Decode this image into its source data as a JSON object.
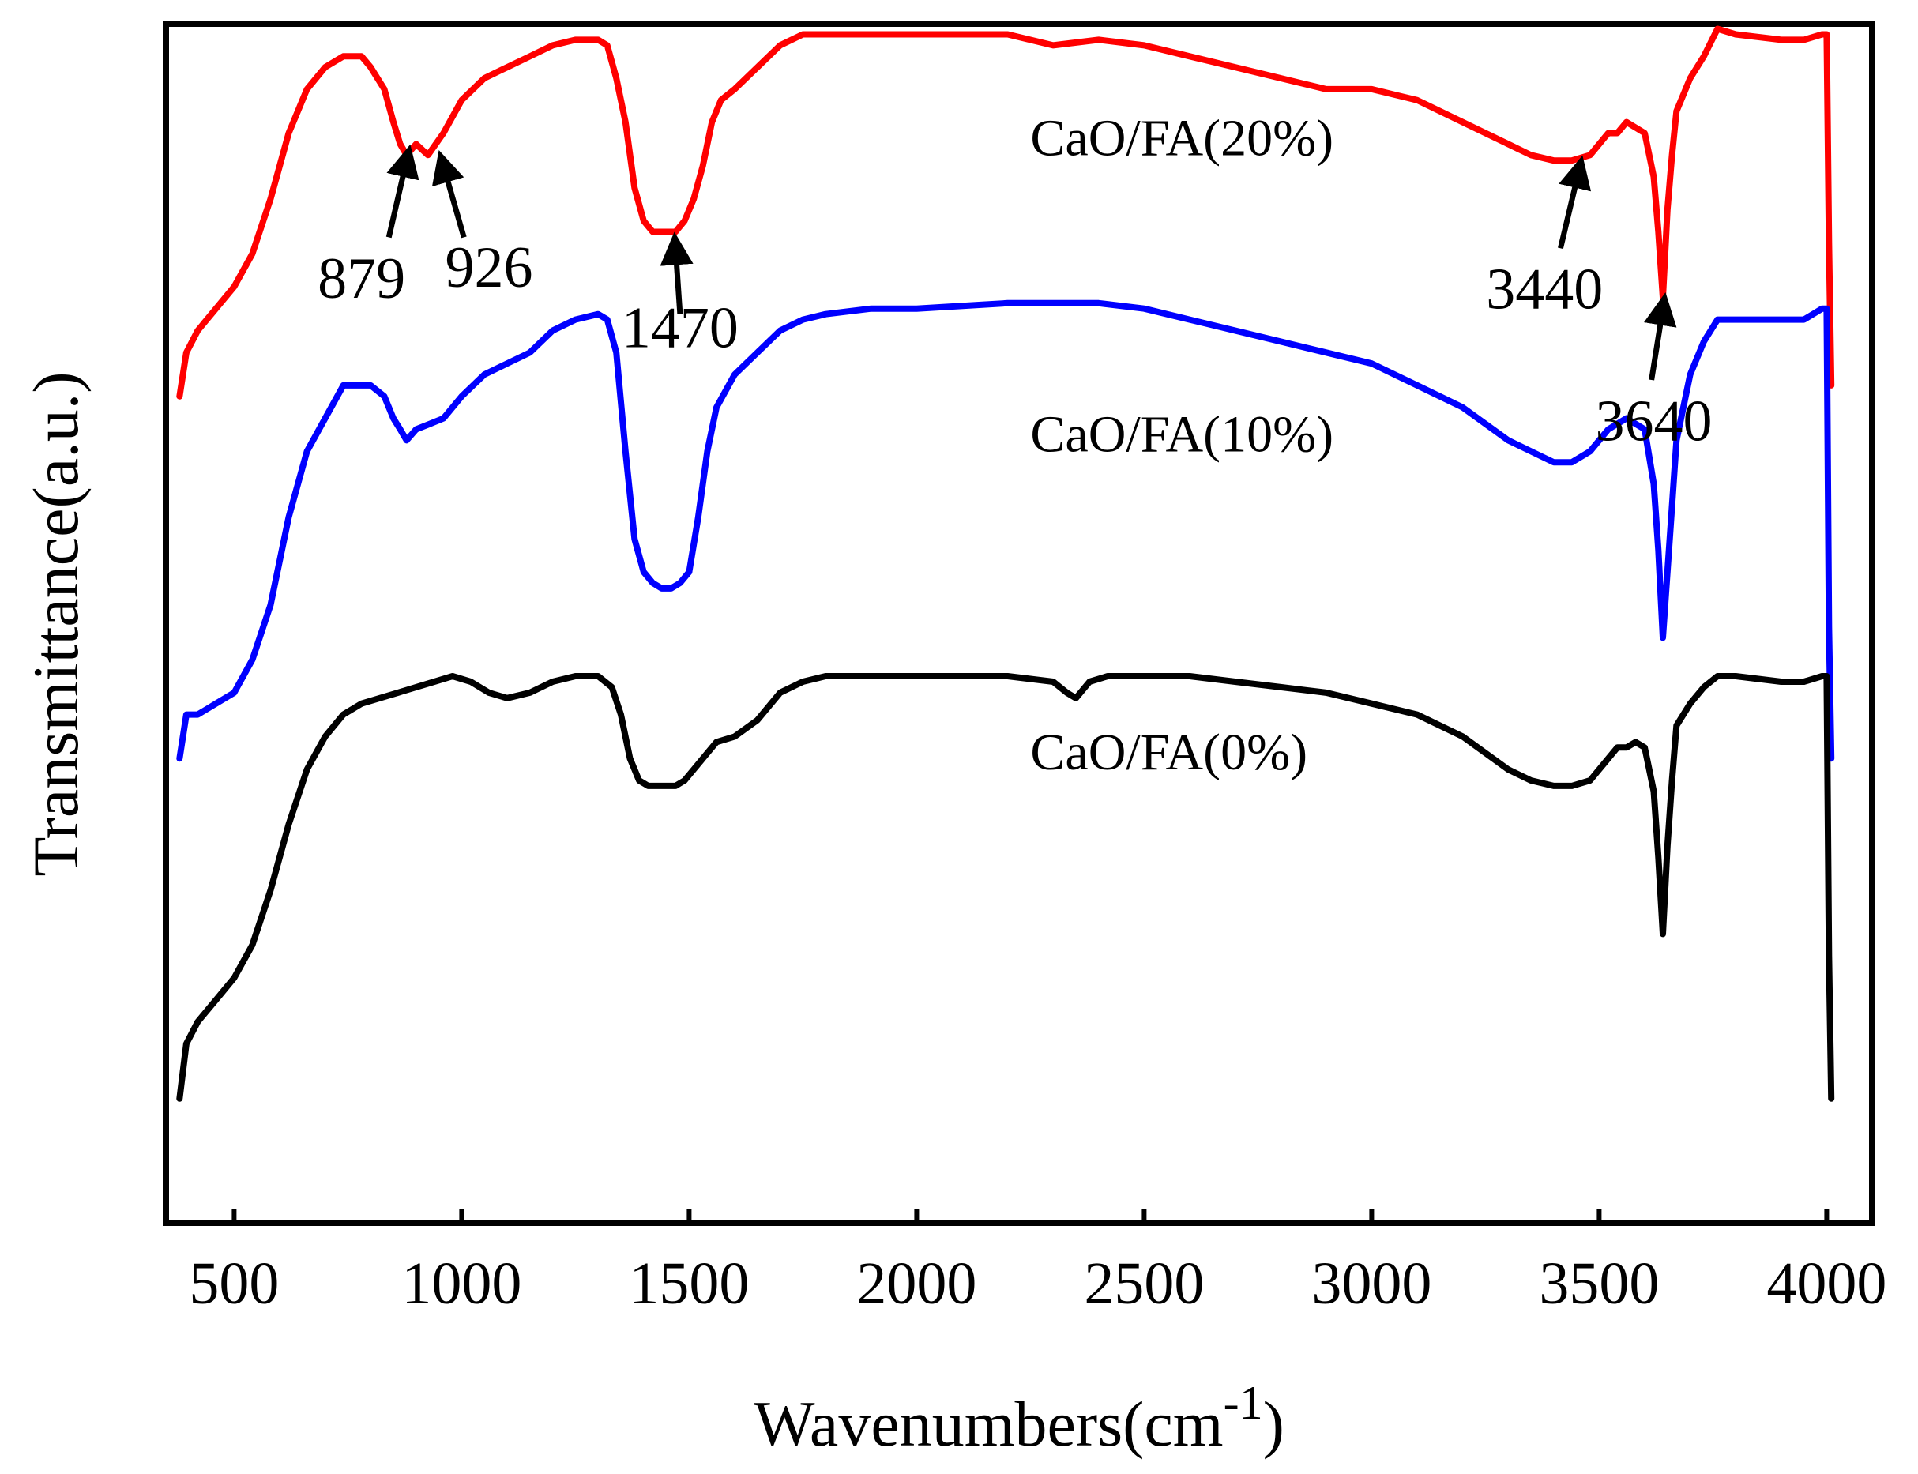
{
  "chart_data": {
    "type": "line",
    "title": "",
    "xlabel": "Wavenumbers(cm",
    "xlabel_superscript": "-1",
    "xlabel_suffix": ")",
    "ylabel": "Transmittance(a.u.)",
    "xlim": [
      350,
      4100
    ],
    "ylim": [
      0,
      1
    ],
    "x_ticks": [
      500,
      1000,
      1500,
      2000,
      2500,
      3000,
      3500,
      4000
    ],
    "x_tick_labels": [
      "500",
      "1000",
      "1500",
      "2000",
      "2500",
      "3000",
      "3500",
      "4000"
    ],
    "y_ticks_visible": false,
    "grid": false,
    "series": [
      {
        "name": "CaO/FA(20%)",
        "color": "#ff0000",
        "x": [
          380,
          395,
          420,
          460,
          500,
          540,
          580,
          620,
          660,
          700,
          740,
          780,
          800,
          830,
          850,
          865,
          879,
          900,
          926,
          960,
          1000,
          1050,
          1100,
          1150,
          1200,
          1250,
          1300,
          1320,
          1340,
          1360,
          1380,
          1400,
          1420,
          1440,
          1460,
          1470,
          1490,
          1510,
          1530,
          1550,
          1570,
          1600,
          1650,
          1700,
          1750,
          1800,
          1900,
          2000,
          2200,
          2300,
          2400,
          2500,
          2600,
          2700,
          2800,
          2900,
          3000,
          3100,
          3200,
          3300,
          3350,
          3400,
          3440,
          3480,
          3500,
          3520,
          3540,
          3560,
          3580,
          3600,
          3620,
          3630,
          3640,
          3650,
          3660,
          3670,
          3700,
          3730,
          3760,
          3800,
          3900,
          3950,
          3990,
          4000,
          4005,
          4010
        ],
        "y": [
          0.71,
          0.75,
          0.77,
          0.79,
          0.81,
          0.84,
          0.89,
          0.95,
          0.99,
          1.01,
          1.02,
          1.02,
          1.01,
          0.99,
          0.96,
          0.94,
          0.93,
          0.94,
          0.93,
          0.95,
          0.98,
          1.0,
          1.01,
          1.02,
          1.03,
          1.035,
          1.035,
          1.03,
          1.0,
          0.96,
          0.9,
          0.87,
          0.86,
          0.86,
          0.86,
          0.86,
          0.87,
          0.89,
          0.92,
          0.96,
          0.98,
          0.99,
          1.01,
          1.03,
          1.04,
          1.04,
          1.04,
          1.04,
          1.04,
          1.03,
          1.035,
          1.03,
          1.02,
          1.01,
          1.0,
          0.99,
          0.99,
          0.98,
          0.96,
          0.94,
          0.93,
          0.925,
          0.925,
          0.93,
          0.94,
          0.95,
          0.95,
          0.96,
          0.955,
          0.95,
          0.91,
          0.86,
          0.8,
          0.88,
          0.93,
          0.97,
          1.0,
          1.02,
          1.045,
          1.04,
          1.035,
          1.035,
          1.04,
          1.04,
          0.85,
          0.72
        ]
      },
      {
        "name": "CaO/FA(10%)",
        "color": "#0000ff",
        "x": [
          380,
          395,
          420,
          460,
          500,
          540,
          580,
          620,
          660,
          700,
          740,
          780,
          800,
          830,
          850,
          865,
          879,
          900,
          930,
          960,
          1000,
          1050,
          1100,
          1150,
          1200,
          1250,
          1300,
          1320,
          1340,
          1360,
          1380,
          1400,
          1420,
          1440,
          1460,
          1480,
          1500,
          1520,
          1540,
          1560,
          1600,
          1650,
          1700,
          1750,
          1800,
          1900,
          2000,
          2200,
          2300,
          2400,
          2500,
          2600,
          2700,
          2800,
          2900,
          3000,
          3100,
          3200,
          3300,
          3350,
          3400,
          3440,
          3480,
          3500,
          3520,
          3540,
          3560,
          3580,
          3600,
          3620,
          3630,
          3640,
          3650,
          3660,
          3670,
          3700,
          3730,
          3760,
          3800,
          3900,
          3950,
          3990,
          4000,
          4005,
          4010
        ],
        "y": [
          0.38,
          0.42,
          0.42,
          0.43,
          0.44,
          0.47,
          0.52,
          0.6,
          0.66,
          0.69,
          0.72,
          0.72,
          0.72,
          0.71,
          0.69,
          0.68,
          0.67,
          0.68,
          0.685,
          0.69,
          0.71,
          0.73,
          0.74,
          0.75,
          0.77,
          0.78,
          0.785,
          0.78,
          0.75,
          0.66,
          0.58,
          0.55,
          0.54,
          0.535,
          0.535,
          0.54,
          0.55,
          0.6,
          0.66,
          0.7,
          0.73,
          0.75,
          0.77,
          0.78,
          0.785,
          0.79,
          0.79,
          0.795,
          0.795,
          0.795,
          0.79,
          0.78,
          0.77,
          0.76,
          0.75,
          0.74,
          0.72,
          0.7,
          0.67,
          0.66,
          0.65,
          0.65,
          0.66,
          0.67,
          0.68,
          0.685,
          0.69,
          0.685,
          0.68,
          0.63,
          0.57,
          0.49,
          0.55,
          0.61,
          0.67,
          0.73,
          0.76,
          0.78,
          0.78,
          0.78,
          0.78,
          0.79,
          0.79,
          0.5,
          0.38
        ]
      },
      {
        "name": "CaO/FA(0%)",
        "color": "#000000",
        "x": [
          380,
          395,
          420,
          460,
          500,
          540,
          580,
          620,
          660,
          700,
          740,
          780,
          820,
          860,
          900,
          940,
          980,
          1020,
          1060,
          1100,
          1150,
          1200,
          1250,
          1300,
          1330,
          1350,
          1370,
          1390,
          1410,
          1440,
          1470,
          1490,
          1510,
          1530,
          1560,
          1600,
          1650,
          1700,
          1750,
          1800,
          2000,
          2200,
          2300,
          2330,
          2350,
          2380,
          2420,
          2460,
          2500,
          2600,
          2700,
          2800,
          2900,
          3000,
          3100,
          3200,
          3300,
          3350,
          3400,
          3440,
          3480,
          3500,
          3520,
          3540,
          3560,
          3580,
          3600,
          3620,
          3630,
          3640,
          3650,
          3660,
          3670,
          3700,
          3730,
          3760,
          3800,
          3900,
          3950,
          3990,
          4000,
          4005,
          4010
        ],
        "y": [
          0.07,
          0.12,
          0.14,
          0.16,
          0.18,
          0.21,
          0.26,
          0.32,
          0.37,
          0.4,
          0.42,
          0.43,
          0.435,
          0.44,
          0.445,
          0.45,
          0.455,
          0.45,
          0.44,
          0.435,
          0.44,
          0.45,
          0.455,
          0.455,
          0.445,
          0.42,
          0.38,
          0.36,
          0.355,
          0.355,
          0.355,
          0.36,
          0.37,
          0.38,
          0.395,
          0.4,
          0.415,
          0.44,
          0.45,
          0.455,
          0.455,
          0.455,
          0.45,
          0.44,
          0.435,
          0.45,
          0.455,
          0.455,
          0.455,
          0.455,
          0.45,
          0.445,
          0.44,
          0.43,
          0.42,
          0.4,
          0.37,
          0.36,
          0.355,
          0.355,
          0.36,
          0.37,
          0.38,
          0.39,
          0.39,
          0.395,
          0.39,
          0.35,
          0.29,
          0.22,
          0.3,
          0.36,
          0.41,
          0.43,
          0.445,
          0.455,
          0.455,
          0.45,
          0.45,
          0.455,
          0.455,
          0.2,
          0.07
        ]
      }
    ],
    "series_labels": [
      {
        "text": "CaO/FA(20%)",
        "x": 2250,
        "y": 0.93
      },
      {
        "text": "CaO/FA(10%)",
        "x": 2250,
        "y": 0.66
      },
      {
        "text": "CaO/FA(0%)",
        "x": 2250,
        "y": 0.37
      }
    ],
    "annotations": [
      {
        "label": "879",
        "target": [
          879,
          0.925
        ],
        "tail": [
          840,
          0.855
        ],
        "text_pos": [
          780,
          0.8
        ]
      },
      {
        "label": "926",
        "target": [
          960,
          0.92
        ],
        "tail": [
          1005,
          0.855
        ],
        "text_pos": [
          1060,
          0.81
        ]
      },
      {
        "label": "1470",
        "target": [
          1470,
          0.845
        ],
        "tail": [
          1480,
          0.785
        ],
        "text_pos": [
          1480,
          0.755
        ]
      },
      {
        "label": "3440",
        "target": [
          3455,
          0.915
        ],
        "tail": [
          3415,
          0.845
        ],
        "text_pos": [
          3380,
          0.79
        ]
      },
      {
        "label": "3640",
        "target": [
          3640,
          0.79
        ],
        "tail": [
          3615,
          0.725
        ],
        "text_pos": [
          3620,
          0.67
        ]
      }
    ]
  }
}
